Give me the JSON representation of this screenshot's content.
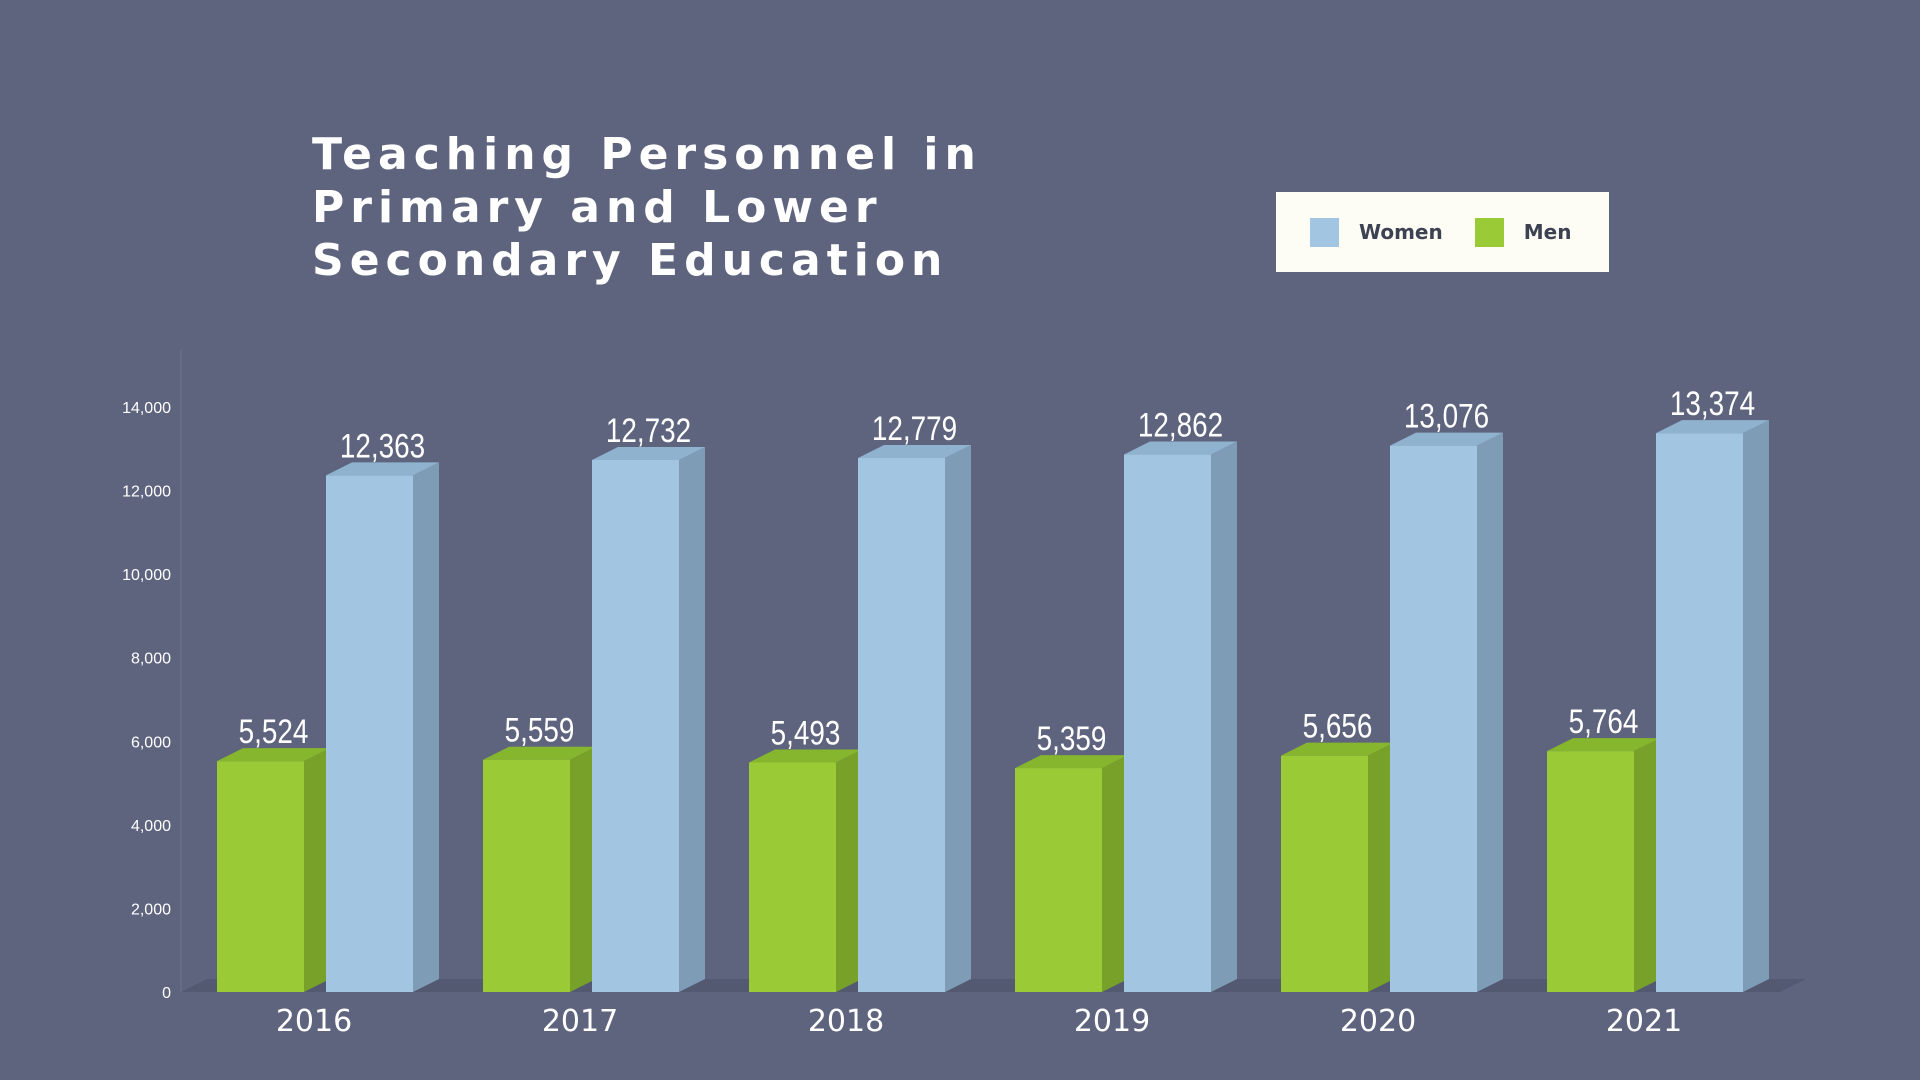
{
  "title_lines": [
    "Teaching Personnel in",
    "Primary and Lower",
    "Secondary Education"
  ],
  "legend": [
    {
      "label": "Women",
      "color": "#a2c5e1"
    },
    {
      "label": "Men",
      "color": "#9acb36"
    }
  ],
  "colors": {
    "background": "#5e647e",
    "women_front": "#a2c5e1",
    "women_side": "#7f9cb6",
    "women_top": "#8fb2cf",
    "men_front": "#9acb36",
    "men_side": "#77a128",
    "men_top": "#86b52e",
    "floor": "#4d5268"
  },
  "chart_data": {
    "type": "bar",
    "title": "Teaching Personnel in Primary and Lower Secondary Education",
    "categories": [
      "2016",
      "2017",
      "2018",
      "2019",
      "2020",
      "2021"
    ],
    "series": [
      {
        "name": "Men",
        "values": [
          5524,
          5559,
          5493,
          5359,
          5656,
          5764
        ],
        "labels": [
          "5,524",
          "5,559",
          "5,493",
          "5,359",
          "5,656",
          "5,764"
        ]
      },
      {
        "name": "Women",
        "values": [
          12363,
          12732,
          12779,
          12862,
          13076,
          13374
        ],
        "labels": [
          "12,363",
          "12,732",
          "12,779",
          "12,862",
          "13,076",
          "13,374"
        ]
      }
    ],
    "yticks": [
      "0",
      "2,000",
      "4,000",
      "6,000",
      "8,000",
      "10,000",
      "12,000",
      "14,000"
    ],
    "ylim": [
      0,
      14000
    ],
    "legend_position": "top-right",
    "grid": false
  }
}
